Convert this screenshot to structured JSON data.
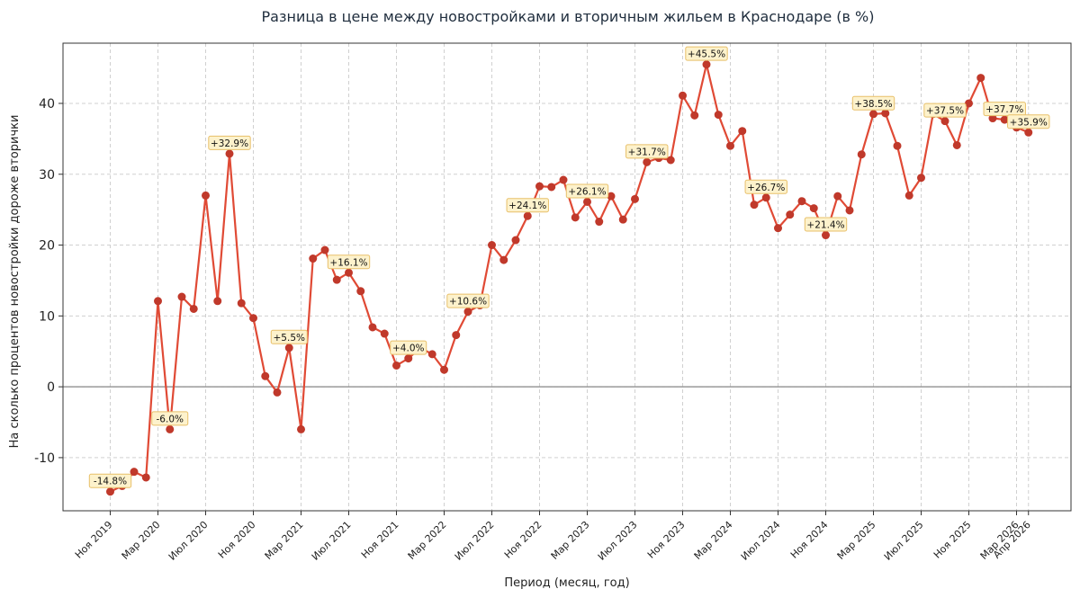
{
  "chart_data": {
    "type": "line",
    "title": "Разница в цене между новостройками и вторичным жильем в Краснодаре (в %)",
    "xlabel": "Период (месяц, год)",
    "ylabel": "На сколько процентов новостройки дороже вторички",
    "ylim": [
      -17.5,
      48.5
    ],
    "yticks": [
      -10,
      0,
      10,
      20,
      30,
      40
    ],
    "grid": true,
    "zero_line": true,
    "colors": {
      "line": "#e04a35",
      "marker": "#c0392b",
      "grid": "#d0d0d0",
      "zero": "#999999",
      "ann_fill": "#fdf2cc",
      "ann_border": "#e8c06a"
    },
    "x_ticks": [
      {
        "label": "Ноя 2019",
        "i": 0
      },
      {
        "label": "Мар 2020",
        "i": 4
      },
      {
        "label": "Июл 2020",
        "i": 8
      },
      {
        "label": "Ноя 2020",
        "i": 12
      },
      {
        "label": "Мар 2021",
        "i": 16
      },
      {
        "label": "Июл 2021",
        "i": 20
      },
      {
        "label": "Ноя 2021",
        "i": 24
      },
      {
        "label": "Мар 2022",
        "i": 28
      },
      {
        "label": "Июл 2022",
        "i": 32
      },
      {
        "label": "Ноя 2022",
        "i": 36
      },
      {
        "label": "Мар 2023",
        "i": 40
      },
      {
        "label": "Июл 2023",
        "i": 44
      },
      {
        "label": "Ноя 2023",
        "i": 48
      },
      {
        "label": "Мар 2024",
        "i": 52
      },
      {
        "label": "Июл 2024",
        "i": 56
      },
      {
        "label": "Ноя 2024",
        "i": 60
      },
      {
        "label": "Мар 2025",
        "i": 64
      },
      {
        "label": "Июл 2025",
        "i": 68
      },
      {
        "label": "Ноя 2025",
        "i": 72
      },
      {
        "label": "Мар 2026",
        "i": 76
      },
      {
        "label": "Апр 2026",
        "i": 77
      }
    ],
    "series": [
      {
        "values": [
          -14.8,
          -14.0,
          -12.0,
          -12.8,
          12.1,
          -6.0,
          12.7,
          11.0,
          27.0,
          12.1,
          32.9,
          11.8,
          9.7,
          1.5,
          -0.8,
          5.5,
          -6.0,
          18.1,
          19.3,
          15.1,
          16.1,
          13.5,
          8.4,
          7.5,
          3.0,
          4.0,
          5.5,
          4.6,
          2.4,
          7.3,
          10.6,
          11.5,
          20.0,
          17.9,
          20.7,
          24.1,
          28.3,
          28.2,
          29.2,
          23.9,
          26.1,
          23.3,
          26.9,
          23.6,
          26.5,
          31.7,
          32.3,
          32.0,
          41.1,
          38.3,
          45.5,
          38.4,
          34.0,
          36.1,
          25.7,
          26.7,
          22.4,
          24.3,
          26.2,
          25.2,
          21.4,
          26.9,
          24.9,
          32.8,
          38.5,
          38.6,
          34.0,
          27.0,
          29.5,
          38.5,
          37.5,
          34.1,
          40.0,
          43.6,
          37.9,
          37.7,
          36.6,
          35.9
        ]
      }
    ],
    "annotations": [
      {
        "i": 0,
        "label": "-14.8%"
      },
      {
        "i": 5,
        "label": "-6.0%"
      },
      {
        "i": 10,
        "label": "+32.9%"
      },
      {
        "i": 15,
        "label": "+5.5%"
      },
      {
        "i": 20,
        "label": "+16.1%"
      },
      {
        "i": 25,
        "label": "+4.0%"
      },
      {
        "i": 30,
        "label": "+10.6%"
      },
      {
        "i": 35,
        "label": "+24.1%"
      },
      {
        "i": 40,
        "label": "+26.1%"
      },
      {
        "i": 45,
        "label": "+31.7%"
      },
      {
        "i": 50,
        "label": "+45.5%"
      },
      {
        "i": 55,
        "label": "+26.7%"
      },
      {
        "i": 60,
        "label": "+21.4%"
      },
      {
        "i": 64,
        "label": "+38.5%"
      },
      {
        "i": 70,
        "label": "+37.5%"
      },
      {
        "i": 75,
        "label": "+37.7%"
      },
      {
        "i": 77,
        "label": "+35.9%"
      }
    ]
  }
}
